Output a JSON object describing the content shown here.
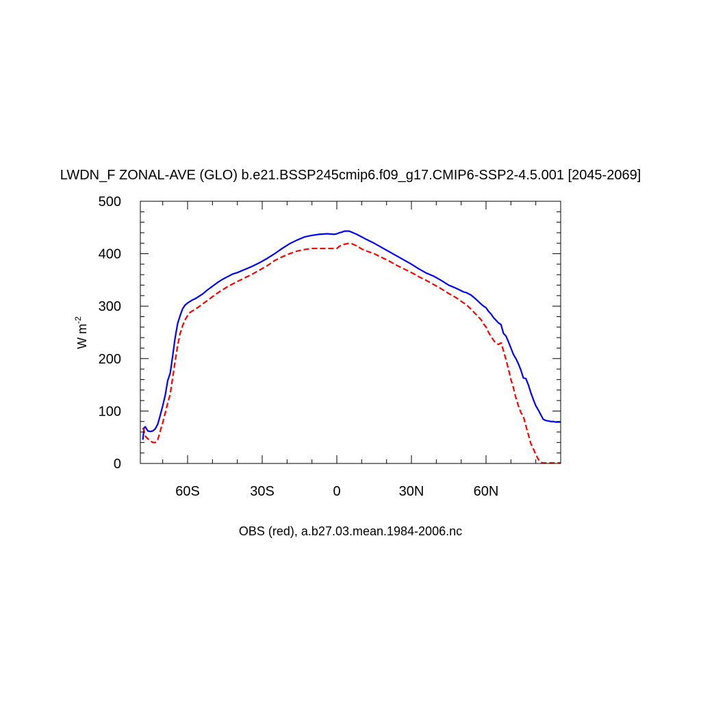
{
  "chart_data": {
    "type": "line",
    "title": "LWDN_F ZONAL-AVE (GLO) b.e21.BSSP245cmip6.f09_g17.CMIP6-SSP2-4.5.001 [2045-2069]",
    "xlabel": "OBS (red), a.b27.03.mean.1984-2006.nc",
    "ylabel": {
      "main": "W m",
      "superscript": "-2"
    },
    "xlim": [
      -79,
      90
    ],
    "ylim": [
      0,
      500
    ],
    "x_ticks": [
      {
        "value": -60,
        "label": "60S"
      },
      {
        "value": -30,
        "label": "30S"
      },
      {
        "value": 0,
        "label": "0"
      },
      {
        "value": 30,
        "label": "30N"
      },
      {
        "value": 60,
        "label": "60N"
      }
    ],
    "y_ticks": [
      {
        "value": 0,
        "label": "0"
      },
      {
        "value": 100,
        "label": "100"
      },
      {
        "value": 200,
        "label": "200"
      },
      {
        "value": 300,
        "label": "300"
      },
      {
        "value": 400,
        "label": "400"
      },
      {
        "value": 500,
        "label": "500"
      }
    ],
    "grid": false,
    "series": [
      {
        "color": "#0000ff",
        "dash": "solid",
        "x": [
          -78,
          -77.5,
          -77,
          -76,
          -75,
          -74,
          -73,
          -72,
          -71,
          -70,
          -69,
          -68,
          -67,
          -66,
          -65,
          -64,
          -63,
          -62,
          -61,
          -60,
          -59,
          -58,
          -57,
          -56,
          -54,
          -52,
          -50,
          -48,
          -46,
          -44,
          -42,
          -40,
          -37,
          -34,
          -31,
          -28,
          -25,
          -22,
          -19,
          -16,
          -13,
          -10,
          -7,
          -4,
          -1,
          0,
          1,
          2,
          3,
          4,
          5,
          6,
          8,
          10,
          12,
          15,
          18,
          21,
          24,
          27,
          30,
          33,
          36,
          39,
          42,
          45,
          48,
          51,
          52,
          54,
          56,
          58,
          59,
          60,
          61,
          62,
          63,
          64,
          65,
          66,
          67,
          68,
          69,
          70,
          71,
          72,
          73,
          74,
          75,
          76,
          77,
          78,
          79,
          80,
          81,
          82,
          83,
          84,
          85,
          86,
          87,
          88,
          89,
          90
        ],
        "y": [
          45,
          68,
          70,
          62,
          61,
          62,
          66,
          75,
          92,
          110,
          130,
          158,
          172,
          205,
          240,
          267,
          282,
          295,
          302,
          306,
          309,
          312,
          314,
          317,
          323,
          331,
          338,
          345,
          351,
          356,
          361,
          364,
          370,
          376,
          383,
          391,
          400,
          410,
          419,
          426,
          432,
          435,
          437,
          438,
          437,
          438,
          440,
          441,
          443,
          443,
          443,
          441,
          437,
          432,
          427,
          420,
          412,
          404,
          396,
          388,
          380,
          371,
          363,
          357,
          349,
          340,
          334,
          327,
          326,
          321,
          313,
          304,
          300,
          297,
          290,
          285,
          278,
          273,
          268,
          265,
          248,
          243,
          232,
          220,
          208,
          200,
          190,
          178,
          163,
          162,
          150,
          135,
          122,
          110,
          102,
          93,
          84,
          82,
          81,
          80,
          80,
          79,
          79,
          79
        ]
      },
      {
        "color": "#ff0000",
        "dash": "dashed",
        "x": [
          -78,
          -77.5,
          -77,
          -76,
          -75,
          -74,
          -73,
          -72,
          -71,
          -70,
          -69,
          -68,
          -67,
          -66,
          -65,
          -64,
          -63,
          -62,
          -61,
          -60,
          -59,
          -58,
          -57,
          -56,
          -54,
          -52,
          -50,
          -48,
          -46,
          -44,
          -42,
          -40,
          -37,
          -34,
          -31,
          -28,
          -25,
          -22,
          -19,
          -16,
          -13,
          -10,
          -7,
          -4,
          -1,
          0,
          1,
          2,
          3,
          4,
          5,
          6,
          8,
          10,
          12,
          15,
          18,
          21,
          24,
          27,
          30,
          33,
          36,
          39,
          42,
          45,
          48,
          51,
          52,
          54,
          56,
          58,
          59,
          60,
          61,
          62,
          63,
          64,
          65,
          66,
          67,
          68,
          69,
          70,
          71,
          72,
          73,
          74,
          75,
          76,
          77,
          78,
          79,
          80,
          81,
          82,
          83,
          84,
          85,
          86,
          87,
          88,
          89,
          90
        ],
        "y": [
          68,
          62,
          52,
          47,
          43,
          40,
          40,
          45,
          62,
          78,
          96,
          115,
          132,
          164,
          195,
          225,
          248,
          263,
          274,
          282,
          288,
          291,
          294,
          297,
          304,
          311,
          318,
          325,
          331,
          337,
          342,
          347,
          354,
          361,
          369,
          377,
          387,
          394,
          400,
          405,
          408,
          410,
          410,
          410,
          410,
          410,
          414,
          416,
          418,
          419,
          420,
          419,
          415,
          409,
          405,
          400,
          393,
          386,
          378,
          371,
          364,
          356,
          349,
          341,
          333,
          324,
          316,
          306,
          303,
          294,
          284,
          274,
          266,
          260,
          250,
          242,
          235,
          229,
          227,
          230,
          215,
          198,
          180,
          160,
          144,
          125,
          110,
          97,
          90,
          72,
          55,
          38,
          28,
          17,
          8,
          2,
          1,
          1,
          1,
          1,
          1,
          1,
          1,
          1
        ]
      }
    ]
  }
}
